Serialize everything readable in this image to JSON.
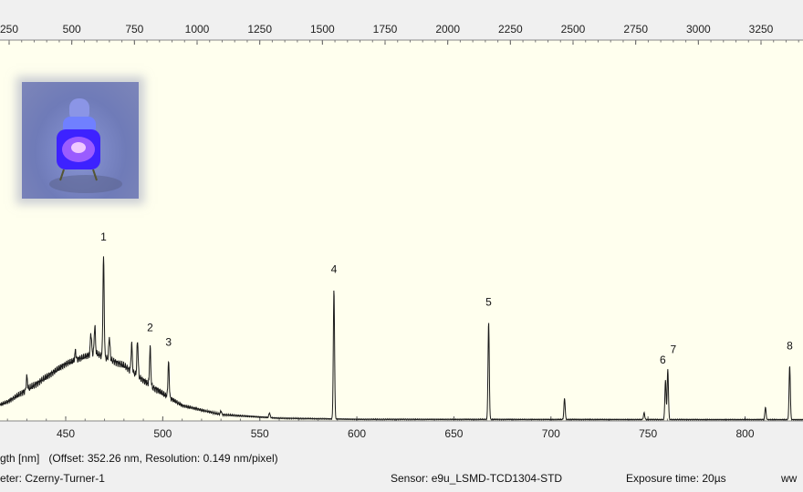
{
  "chart_data": {
    "type": "line",
    "title": "",
    "xlabel": "gth [nm]",
    "xlabel_note": "(Offset: 352.26 nm, Resolution: 0.149 nm/pixel)",
    "top_axis_ticks": [
      "250",
      "500",
      "750",
      "1000",
      "1250",
      "1500",
      "1750",
      "2000",
      "2250",
      "2500",
      "2750",
      "3000",
      "3250"
    ],
    "bottom_axis_ticks": [
      "450",
      "500",
      "550",
      "600",
      "650",
      "700",
      "750",
      "800"
    ],
    "xlim_nm": [
      405,
      835
    ],
    "ylim": [
      0,
      100
    ],
    "grid": false,
    "background_color": "#ffffee",
    "line_color": "#1a1a1a",
    "continuum": [
      [
        405,
        2
      ],
      [
        420,
        5
      ],
      [
        435,
        10
      ],
      [
        450,
        15.5
      ],
      [
        465,
        18.5
      ],
      [
        480,
        15
      ],
      [
        495,
        9
      ],
      [
        510,
        4
      ],
      [
        530,
        1.5
      ],
      [
        560,
        0.5
      ],
      [
        600,
        0.2
      ],
      [
        835,
        0.1
      ]
    ],
    "peaks": [
      {
        "label": "1",
        "x": 469.5,
        "y": 45
      },
      {
        "label": "2",
        "x": 493.5,
        "y": 20
      },
      {
        "label": "3",
        "x": 503.0,
        "y": 16
      },
      {
        "label": "4",
        "x": 588.2,
        "y": 36
      },
      {
        "label": "5",
        "x": 667.9,
        "y": 27
      },
      {
        "label": "6",
        "x": 759.0,
        "y": 11
      },
      {
        "label": "7",
        "x": 760.2,
        "y": 14
      },
      {
        "label": "8",
        "x": 823.0,
        "y": 15
      }
    ],
    "minor_peaks": [
      {
        "x": 463.0,
        "y": 24
      },
      {
        "x": 465.0,
        "y": 26
      },
      {
        "x": 472.5,
        "y": 23
      },
      {
        "x": 484.0,
        "y": 21
      },
      {
        "x": 487.0,
        "y": 22
      },
      {
        "x": 430.0,
        "y": 12
      },
      {
        "x": 455.0,
        "y": 19
      },
      {
        "x": 530.0,
        "y": 2.5
      },
      {
        "x": 555.0,
        "y": 2
      },
      {
        "x": 707.0,
        "y": 6
      },
      {
        "x": 748.0,
        "y": 2
      },
      {
        "x": 810.5,
        "y": 3.5
      }
    ]
  },
  "footer": {
    "spectrometer": "eter: Czerny-Turner-1",
    "sensor": "Sensor: e9u_LSMD-TCD1304-STD",
    "exposure": "Exposure time: 20µs",
    "web": "ww"
  },
  "thumbnail": {
    "name": "led-photo",
    "color": "#5a3cff"
  }
}
